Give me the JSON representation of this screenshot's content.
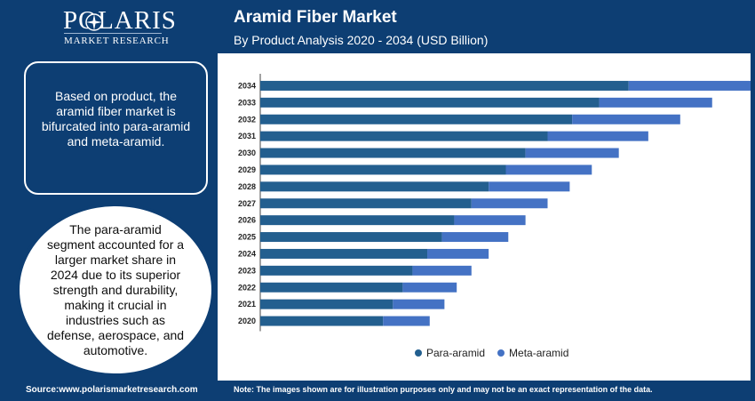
{
  "brand": {
    "name": "POLARIS",
    "tagline": "MARKET RESEARCH"
  },
  "header": {
    "title": "Aramid Fiber Market",
    "subtitle": "By Product Analysis 2020 - 2034 (USD Billion)"
  },
  "sidebar": {
    "box_text": "Based on product, the aramid fiber market is bifurcated into para-aramid and meta-aramid.",
    "circle_text": "The para-aramid segment accounted for a larger market share in 2024 due to its superior strength and durability, making it crucial in industries such as defense, aerospace, and automotive."
  },
  "footer": {
    "source": "Source:www.polarismarketresearch.com",
    "note": "Note: The images shown are for illustration purposes only and may not be an exact representation of the data."
  },
  "colors": {
    "brand_navy": "#0d3e73",
    "para_aramid": "#235f8f",
    "meta_aramid": "#4472c4"
  },
  "chart_data": {
    "type": "bar",
    "orientation": "horizontal",
    "stacked": true,
    "categories": [
      "2034",
      "2033",
      "2032",
      "2031",
      "2030",
      "2029",
      "2028",
      "2027",
      "2026",
      "2025",
      "2024",
      "2023",
      "2022",
      "2021",
      "2020"
    ],
    "series": [
      {
        "name": "Para-aramid",
        "color": "#235f8f",
        "values": [
          7.5,
          6.9,
          6.35,
          5.85,
          5.4,
          5.0,
          4.65,
          4.3,
          3.95,
          3.7,
          3.4,
          3.1,
          2.9,
          2.7,
          2.5
        ]
      },
      {
        "name": "Meta-aramid",
        "color": "#4472c4",
        "values": [
          2.5,
          2.3,
          2.2,
          2.05,
          1.9,
          1.75,
          1.65,
          1.55,
          1.45,
          1.35,
          1.25,
          1.2,
          1.1,
          1.05,
          0.95
        ]
      }
    ],
    "xlim": [
      0,
      10
    ],
    "axis_values_shown": false,
    "grid": false,
    "legend": "bottom-center"
  }
}
